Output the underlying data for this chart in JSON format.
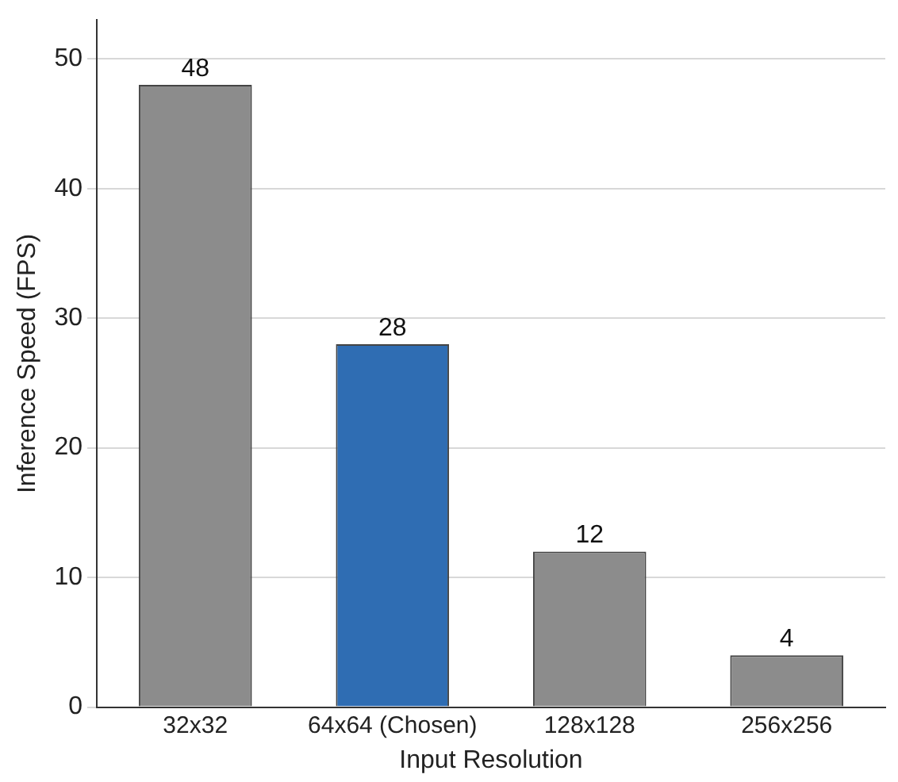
{
  "chart_data": {
    "type": "bar",
    "xlabel": "Input Resolution",
    "ylabel": "Inference Speed (FPS)",
    "categories": [
      "32x32",
      "64x64 (Chosen)",
      "128x128",
      "256x256"
    ],
    "values": [
      48,
      28,
      12,
      4
    ],
    "colors": [
      "#8c8c8c",
      "#2f6db3",
      "#8c8c8c",
      "#8c8c8c"
    ],
    "ylim": [
      0,
      53
    ],
    "yticks": [
      0,
      10,
      20,
      30,
      40,
      50
    ],
    "grid": "y",
    "data_labels": true,
    "legend": false
  }
}
